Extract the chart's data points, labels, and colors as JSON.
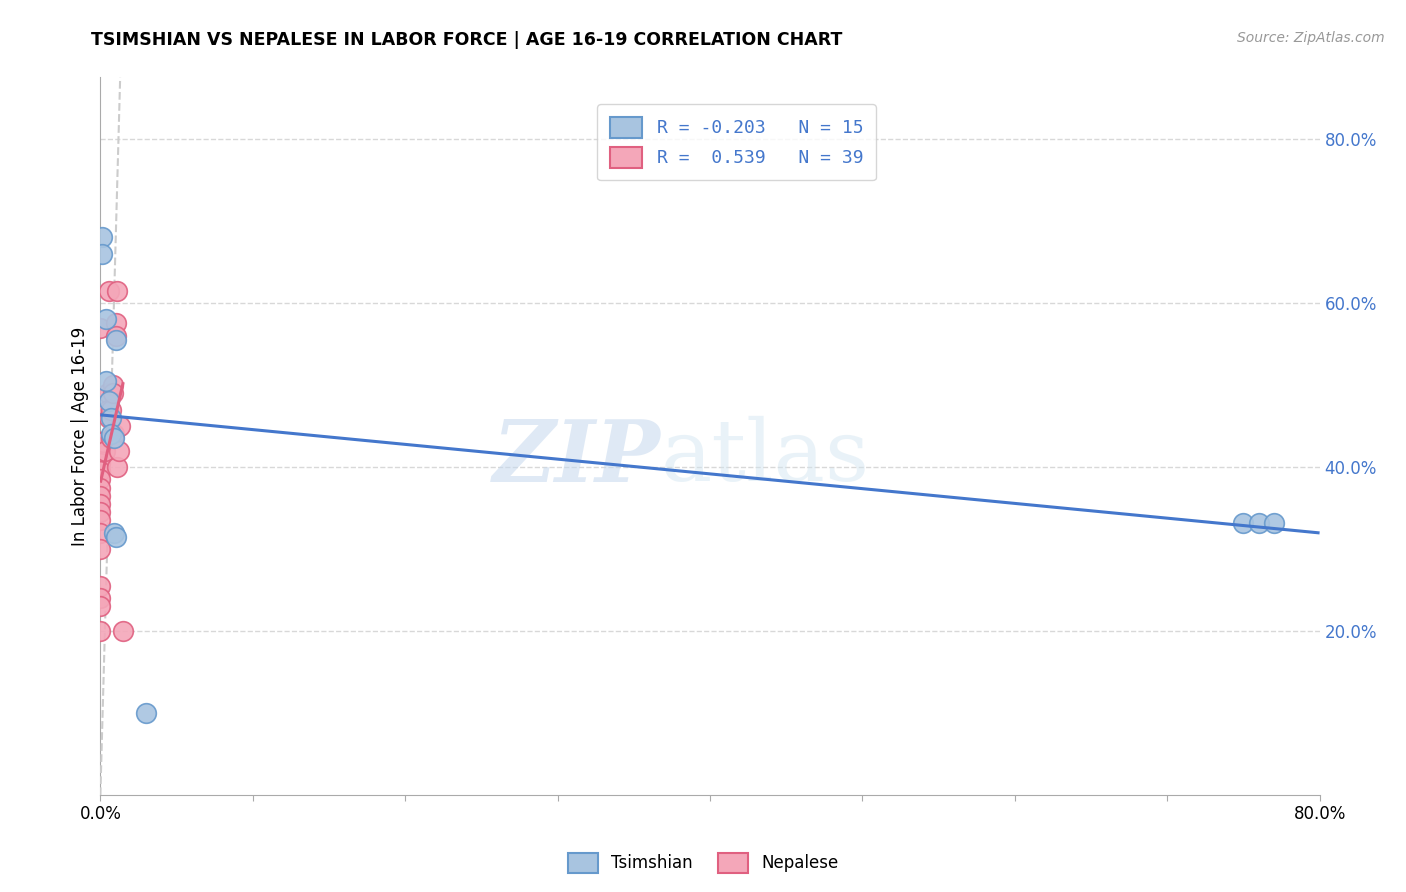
{
  "title": "TSIMSHIAN VS NEPALESE IN LABOR FORCE | AGE 16-19 CORRELATION CHART",
  "source": "Source: ZipAtlas.com",
  "ylabel": "In Labor Force | Age 16-19",
  "xlim": [
    0.0,
    0.8
  ],
  "ylim": [
    0.0,
    0.875
  ],
  "xticks": [
    0.0,
    0.1,
    0.2,
    0.3,
    0.4,
    0.5,
    0.6,
    0.7,
    0.8
  ],
  "xtick_labels_sparse": [
    "0.0%",
    "",
    "",
    "",
    "",
    "",
    "",
    "",
    "80.0%"
  ],
  "yticks_right": [
    0.2,
    0.4,
    0.6,
    0.8
  ],
  "ytick_labels_right": [
    "20.0%",
    "40.0%",
    "60.0%",
    "80.0%"
  ],
  "tsimshian_color": "#a8c4e0",
  "nepalese_color": "#f4a7b9",
  "tsimshian_edge": "#6699cc",
  "nepalese_edge": "#e06080",
  "trend_blue": "#4477cc",
  "trend_pink": "#e06080",
  "R_tsimshian": -0.203,
  "N_tsimshian": 15,
  "R_nepalese": 0.539,
  "N_nepalese": 39,
  "tsimshian_x": [
    0.001,
    0.001,
    0.004,
    0.004,
    0.006,
    0.007,
    0.007,
    0.009,
    0.009,
    0.01,
    0.01,
    0.75,
    0.76,
    0.77,
    0.03
  ],
  "tsimshian_y": [
    0.68,
    0.66,
    0.58,
    0.505,
    0.48,
    0.46,
    0.44,
    0.435,
    0.32,
    0.315,
    0.555,
    0.332,
    0.332,
    0.332,
    0.1
  ],
  "nepalese_x": [
    0.0,
    0.0,
    0.0,
    0.0,
    0.0,
    0.0,
    0.0,
    0.0,
    0.0,
    0.0,
    0.0,
    0.0,
    0.0,
    0.0,
    0.0,
    0.0,
    0.0,
    0.0,
    0.0,
    0.0,
    0.0,
    0.002,
    0.003,
    0.005,
    0.005,
    0.006,
    0.006,
    0.007,
    0.007,
    0.008,
    0.008,
    0.009,
    0.01,
    0.01,
    0.011,
    0.011,
    0.012,
    0.013,
    0.015
  ],
  "nepalese_y": [
    0.57,
    0.43,
    0.43,
    0.43,
    0.425,
    0.42,
    0.415,
    0.405,
    0.395,
    0.385,
    0.375,
    0.365,
    0.355,
    0.345,
    0.335,
    0.32,
    0.3,
    0.255,
    0.24,
    0.23,
    0.2,
    0.43,
    0.42,
    0.49,
    0.47,
    0.615,
    0.46,
    0.47,
    0.435,
    0.5,
    0.49,
    0.44,
    0.575,
    0.56,
    0.4,
    0.615,
    0.42,
    0.45,
    0.2
  ],
  "watermark_zip": "ZIP",
  "watermark_atlas": "atlas",
  "legend_text_color": "#4477cc",
  "axis_color": "#4477cc",
  "grid_color": "#d8d8d8",
  "background": "#ffffff",
  "ref_line_color": "#cccccc"
}
